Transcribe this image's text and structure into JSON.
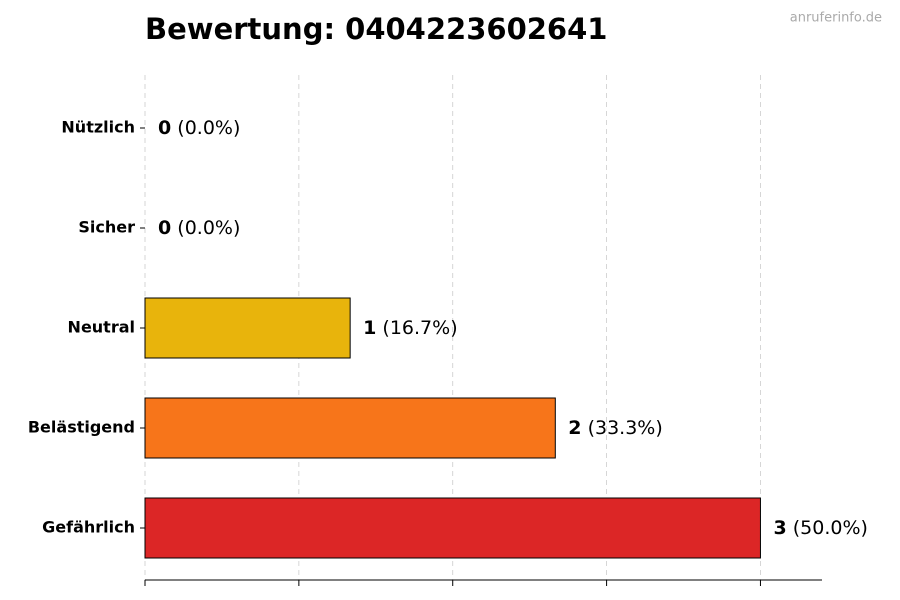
{
  "chart_data": {
    "type": "hbar",
    "title": "Bewertung: 0404223602641",
    "watermark": "anruferinfo.de",
    "categories": [
      "Nützlich",
      "Sicher",
      "Neutral",
      "Belästigend",
      "Gefährlich"
    ],
    "values": [
      0,
      0,
      1,
      2,
      3
    ],
    "percent_labels": [
      "(0.0%)",
      "(0.0%)",
      "(16.7%)",
      "(33.3%)",
      "(50.0%)"
    ],
    "colors": [
      null,
      null,
      "#e8b40c",
      "#f7751a",
      "#dc2626"
    ],
    "xlim": [
      0,
      3.3
    ],
    "xticks": [
      0,
      0.75,
      1.5,
      2.25,
      3
    ],
    "grid": true
  }
}
